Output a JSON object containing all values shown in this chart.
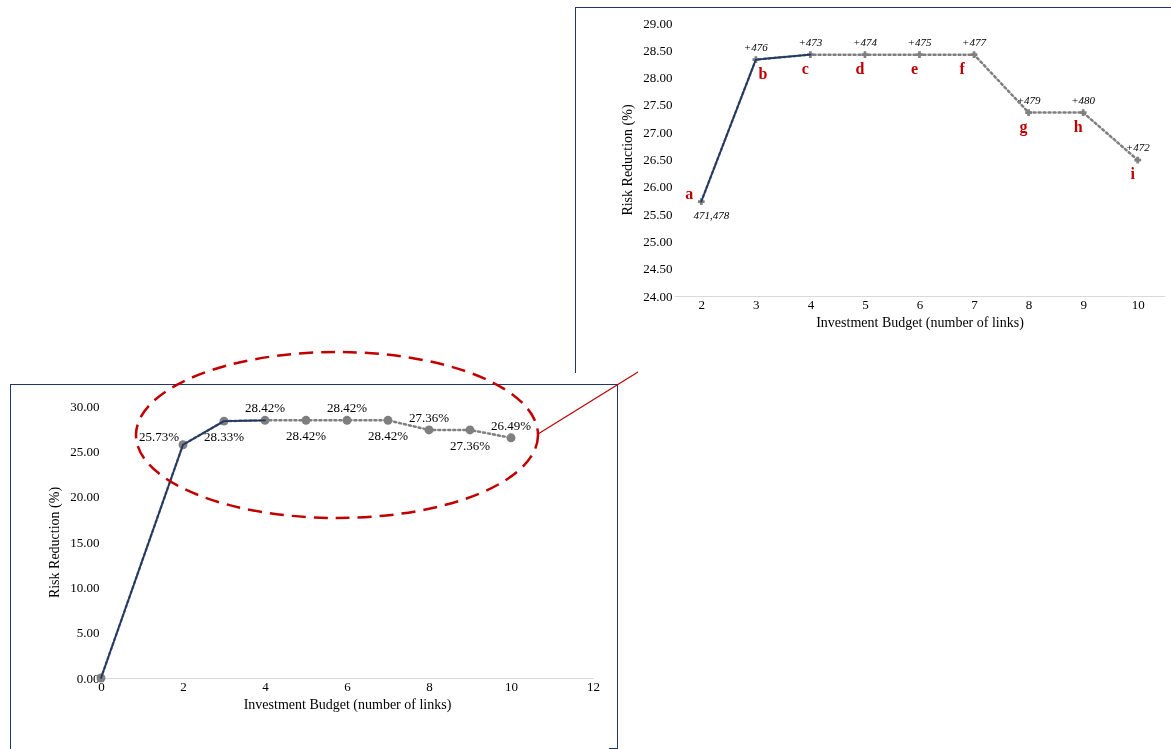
{
  "chart_data": [
    {
      "type": "line",
      "xlabel": "Investment Budget (number of links)",
      "ylabel": "Risk Reduction (%)",
      "x": [
        0,
        2,
        3,
        4,
        5,
        6,
        7,
        8,
        9,
        10
      ],
      "xlim": [
        0,
        12
      ],
      "xticks": [
        0,
        2,
        4,
        6,
        8,
        10,
        12
      ],
      "ylim": [
        0,
        30
      ],
      "yticks": [
        {
          "value": 0,
          "label": "0.00"
        },
        {
          "value": 5,
          "label": "5.00"
        },
        {
          "value": 10,
          "label": "10.00"
        },
        {
          "value": 15,
          "label": "15.00"
        },
        {
          "value": 20,
          "label": "20.00"
        },
        {
          "value": 25,
          "label": "25.00"
        },
        {
          "value": 30,
          "label": "30.00"
        }
      ],
      "grid": false,
      "series": [
        {
          "color": "#7f7f7f",
          "line_style": "dotted",
          "marker": "circle",
          "values": [
            0,
            25.73,
            28.33,
            28.42,
            28.42,
            28.42,
            28.42,
            27.36,
            27.36,
            26.49
          ],
          "value_labels": [
            null,
            "25.73%",
            "28.33%",
            "28.42%",
            "28.42%",
            "28.42%",
            "28.42%",
            "27.36%",
            "27.36%",
            "26.49%"
          ]
        },
        {
          "color": "#1f3864",
          "line_style": "solid",
          "marker": "none",
          "values": [
            0,
            25.73,
            28.33,
            28.42,
            null,
            null,
            null,
            null,
            null,
            null
          ]
        }
      ]
    },
    {
      "type": "line",
      "xlabel": "Investment Budget (number of links)",
      "ylabel": "Risk Reduction (%)",
      "categories": [
        "2",
        "3",
        "4",
        "5",
        "6",
        "7",
        "8",
        "9",
        "10"
      ],
      "ylim": [
        24,
        29
      ],
      "yticks": [
        {
          "value": 24,
          "label": "24.00"
        },
        {
          "value": 24.5,
          "label": "24.50"
        },
        {
          "value": 25,
          "label": "25.00"
        },
        {
          "value": 25.5,
          "label": "25.50"
        },
        {
          "value": 26,
          "label": "26.00"
        },
        {
          "value": 26.5,
          "label": "26.50"
        },
        {
          "value": 27,
          "label": "27.00"
        },
        {
          "value": 27.5,
          "label": "27.50"
        },
        {
          "value": 28,
          "label": "28.00"
        },
        {
          "value": 28.5,
          "label": "28.50"
        },
        {
          "value": 29,
          "label": "29.00"
        }
      ],
      "grid": false,
      "series": [
        {
          "color": "#7f7f7f",
          "line_style": "dotted",
          "marker": "cross",
          "values": [
            25.73,
            28.33,
            28.42,
            28.42,
            28.42,
            28.42,
            27.36,
            27.36,
            26.49
          ]
        },
        {
          "color": "#1f3864",
          "line_style": "solid",
          "marker": "none",
          "values": [
            25.73,
            28.33,
            28.42,
            null,
            null,
            null,
            null,
            null,
            null
          ]
        }
      ],
      "annotations": [
        {
          "text": "a",
          "x": "2",
          "y": 25.73
        },
        {
          "text": "b",
          "x": "3",
          "y": 28.33
        },
        {
          "text": "c",
          "x": "4",
          "y": 28.42
        },
        {
          "text": "d",
          "x": "5",
          "y": 28.42
        },
        {
          "text": "e",
          "x": "6",
          "y": 28.42
        },
        {
          "text": "f",
          "x": "7",
          "y": 28.42
        },
        {
          "text": "g",
          "x": "8",
          "y": 27.36
        },
        {
          "text": "h",
          "x": "9",
          "y": 27.36
        },
        {
          "text": "i",
          "x": "10",
          "y": 26.49
        },
        {
          "text": "471,478",
          "x": "2",
          "y": 25.73
        },
        {
          "text": "+476",
          "x": "3",
          "y": 28.33
        },
        {
          "text": "+473",
          "x": "4",
          "y": 28.42
        },
        {
          "text": "+474",
          "x": "5",
          "y": 28.42
        },
        {
          "text": "+475",
          "x": "6",
          "y": 28.42
        },
        {
          "text": "+477",
          "x": "7",
          "y": 28.42
        },
        {
          "text": "+479",
          "x": "8",
          "y": 27.36
        },
        {
          "text": "+480",
          "x": "9",
          "y": 27.36
        },
        {
          "text": "+472",
          "x": "10",
          "y": 26.49
        }
      ]
    }
  ]
}
